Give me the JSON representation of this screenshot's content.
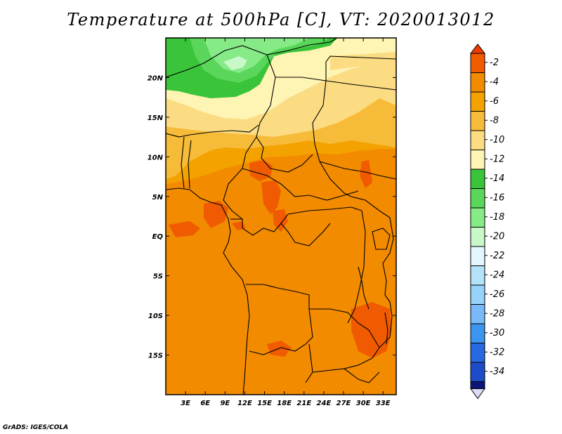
{
  "title": "Temperature at 500hPa [C], VT: 2020013012",
  "credit": "GrADS: IGES/COLA",
  "map": {
    "lon_range": [
      0,
      35
    ],
    "lat_range": [
      -20,
      25
    ],
    "lon_ticks": [
      {
        "value": 3,
        "label": "3E"
      },
      {
        "value": 6,
        "label": "6E"
      },
      {
        "value": 9,
        "label": "9E"
      },
      {
        "value": 12,
        "label": "12E"
      },
      {
        "value": 15,
        "label": "15E"
      },
      {
        "value": 18,
        "label": "18E"
      },
      {
        "value": 21,
        "label": "21E"
      },
      {
        "value": 24,
        "label": "24E"
      },
      {
        "value": 27,
        "label": "27E"
      },
      {
        "value": 30,
        "label": "30E"
      },
      {
        "value": 33,
        "label": "33E"
      }
    ],
    "lat_ticks": [
      {
        "value": 20,
        "label": "20N"
      },
      {
        "value": 15,
        "label": "15N"
      },
      {
        "value": 10,
        "label": "10N"
      },
      {
        "value": 5,
        "label": "5N"
      },
      {
        "value": 0,
        "label": "EQ"
      },
      {
        "value": -5,
        "label": "5S"
      },
      {
        "value": -10,
        "label": "10S"
      },
      {
        "value": -15,
        "label": "15S"
      }
    ]
  },
  "colorbar": {
    "levels": [
      {
        "label": "-2",
        "color": "#f05a00"
      },
      {
        "label": "-4",
        "color": "#f28b00"
      },
      {
        "label": "-6",
        "color": "#f4a200"
      },
      {
        "label": "-8",
        "color": "#f7bb3a"
      },
      {
        "label": "-10",
        "color": "#fbdc82"
      },
      {
        "label": "-12",
        "color": "#fef4b4"
      },
      {
        "label": "-14",
        "color": "#3ac43a"
      },
      {
        "label": "-16",
        "color": "#5ad65a"
      },
      {
        "label": "-18",
        "color": "#86ea86"
      },
      {
        "label": "-20",
        "color": "#c8f8c8"
      },
      {
        "label": "-22",
        "color": "#e2f8fe"
      },
      {
        "label": "-24",
        "color": "#b4e2f8"
      },
      {
        "label": "-26",
        "color": "#96d2fa"
      },
      {
        "label": "-28",
        "color": "#78b9fa"
      },
      {
        "label": "-30",
        "color": "#3c96f0"
      },
      {
        "label": "-32",
        "color": "#2869e0"
      },
      {
        "label": "-34",
        "color": "#1e4bc8"
      }
    ],
    "top_color": "#f03c00",
    "bottom_color": "#0c1478",
    "bottom_extra_color": "#dcdcf8"
  }
}
